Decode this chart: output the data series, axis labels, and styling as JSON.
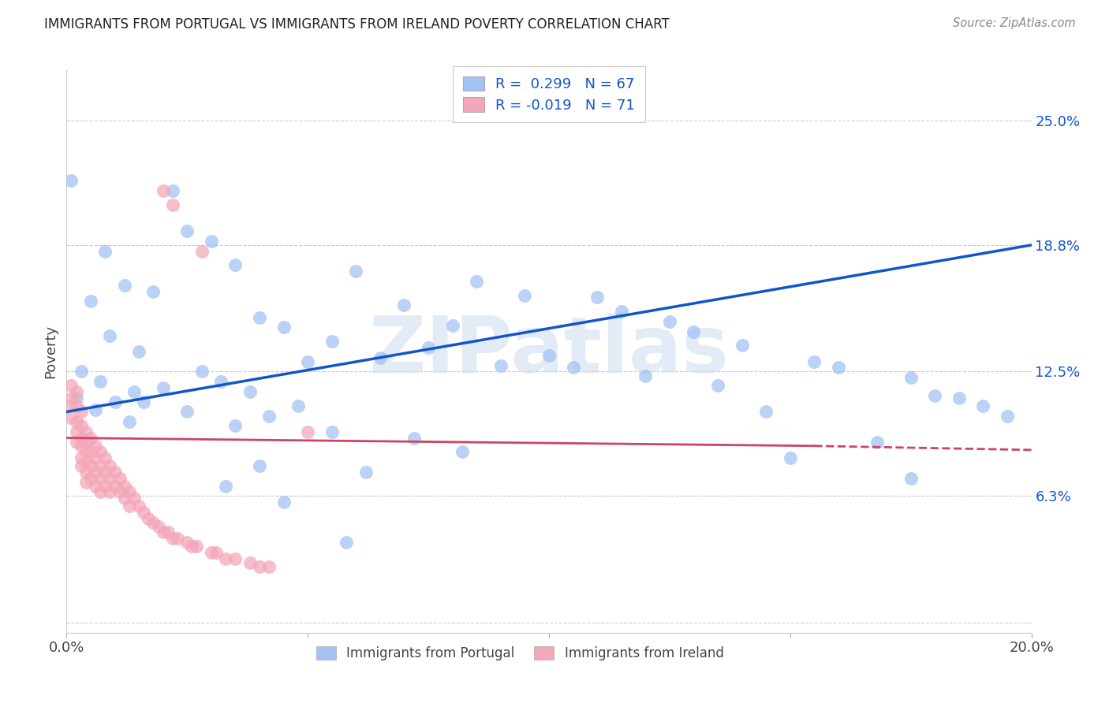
{
  "title": "IMMIGRANTS FROM PORTUGAL VS IMMIGRANTS FROM IRELAND POVERTY CORRELATION CHART",
  "source": "Source: ZipAtlas.com",
  "ylabel": "Poverty",
  "xlim": [
    0.0,
    0.2
  ],
  "ylim": [
    -0.005,
    0.275
  ],
  "yticks": [
    0.0,
    0.063,
    0.125,
    0.188,
    0.25
  ],
  "ytick_labels": [
    "",
    "6.3%",
    "12.5%",
    "18.8%",
    "25.0%"
  ],
  "xticks": [
    0.0,
    0.05,
    0.1,
    0.15,
    0.2
  ],
  "xtick_labels": [
    "0.0%",
    "",
    "",
    "",
    "20.0%"
  ],
  "blue_color": "#a4c2f4",
  "pink_color": "#f4a7b9",
  "blue_line_color": "#1155cc",
  "pink_line_color": "#cc4466",
  "bg_color": "#ffffff",
  "watermark": "ZIPatlas",
  "watermark_color": "#d0dff0",
  "blue_series_label": "Immigrants from Portugal",
  "pink_series_label": "Immigrants from Ireland",
  "blue_R": 0.299,
  "blue_N": 67,
  "pink_R": -0.019,
  "pink_N": 71,
  "blue_points": [
    [
      0.001,
      0.22
    ],
    [
      0.022,
      0.215
    ],
    [
      0.025,
      0.195
    ],
    [
      0.03,
      0.19
    ],
    [
      0.008,
      0.185
    ],
    [
      0.035,
      0.178
    ],
    [
      0.06,
      0.175
    ],
    [
      0.085,
      0.17
    ],
    [
      0.012,
      0.168
    ],
    [
      0.018,
      0.165
    ],
    [
      0.095,
      0.163
    ],
    [
      0.11,
      0.162
    ],
    [
      0.005,
      0.16
    ],
    [
      0.07,
      0.158
    ],
    [
      0.115,
      0.155
    ],
    [
      0.04,
      0.152
    ],
    [
      0.125,
      0.15
    ],
    [
      0.08,
      0.148
    ],
    [
      0.045,
      0.147
    ],
    [
      0.13,
      0.145
    ],
    [
      0.009,
      0.143
    ],
    [
      0.055,
      0.14
    ],
    [
      0.14,
      0.138
    ],
    [
      0.075,
      0.137
    ],
    [
      0.015,
      0.135
    ],
    [
      0.1,
      0.133
    ],
    [
      0.065,
      0.132
    ],
    [
      0.05,
      0.13
    ],
    [
      0.155,
      0.13
    ],
    [
      0.09,
      0.128
    ],
    [
      0.105,
      0.127
    ],
    [
      0.16,
      0.127
    ],
    [
      0.003,
      0.125
    ],
    [
      0.028,
      0.125
    ],
    [
      0.12,
      0.123
    ],
    [
      0.175,
      0.122
    ],
    [
      0.007,
      0.12
    ],
    [
      0.032,
      0.12
    ],
    [
      0.135,
      0.118
    ],
    [
      0.02,
      0.117
    ],
    [
      0.014,
      0.115
    ],
    [
      0.038,
      0.115
    ],
    [
      0.18,
      0.113
    ],
    [
      0.185,
      0.112
    ],
    [
      0.002,
      0.112
    ],
    [
      0.01,
      0.11
    ],
    [
      0.016,
      0.11
    ],
    [
      0.048,
      0.108
    ],
    [
      0.19,
      0.108
    ],
    [
      0.006,
      0.106
    ],
    [
      0.025,
      0.105
    ],
    [
      0.145,
      0.105
    ],
    [
      0.042,
      0.103
    ],
    [
      0.195,
      0.103
    ],
    [
      0.013,
      0.1
    ],
    [
      0.035,
      0.098
    ],
    [
      0.055,
      0.095
    ],
    [
      0.072,
      0.092
    ],
    [
      0.168,
      0.09
    ],
    [
      0.082,
      0.085
    ],
    [
      0.15,
      0.082
    ],
    [
      0.04,
      0.078
    ],
    [
      0.062,
      0.075
    ],
    [
      0.175,
      0.072
    ],
    [
      0.033,
      0.068
    ],
    [
      0.045,
      0.06
    ],
    [
      0.058,
      0.04
    ]
  ],
  "pink_points": [
    [
      0.001,
      0.118
    ],
    [
      0.001,
      0.112
    ],
    [
      0.001,
      0.108
    ],
    [
      0.001,
      0.102
    ],
    [
      0.002,
      0.115
    ],
    [
      0.002,
      0.108
    ],
    [
      0.002,
      0.1
    ],
    [
      0.002,
      0.095
    ],
    [
      0.002,
      0.09
    ],
    [
      0.003,
      0.105
    ],
    [
      0.003,
      0.098
    ],
    [
      0.003,
      0.092
    ],
    [
      0.003,
      0.088
    ],
    [
      0.003,
      0.082
    ],
    [
      0.003,
      0.078
    ],
    [
      0.004,
      0.095
    ],
    [
      0.004,
      0.09
    ],
    [
      0.004,
      0.085
    ],
    [
      0.004,
      0.08
    ],
    [
      0.004,
      0.075
    ],
    [
      0.004,
      0.07
    ],
    [
      0.005,
      0.092
    ],
    [
      0.005,
      0.085
    ],
    [
      0.005,
      0.078
    ],
    [
      0.005,
      0.072
    ],
    [
      0.006,
      0.088
    ],
    [
      0.006,
      0.082
    ],
    [
      0.006,
      0.075
    ],
    [
      0.006,
      0.068
    ],
    [
      0.007,
      0.085
    ],
    [
      0.007,
      0.078
    ],
    [
      0.007,
      0.072
    ],
    [
      0.007,
      0.065
    ],
    [
      0.008,
      0.082
    ],
    [
      0.008,
      0.075
    ],
    [
      0.008,
      0.068
    ],
    [
      0.009,
      0.078
    ],
    [
      0.009,
      0.072
    ],
    [
      0.009,
      0.065
    ],
    [
      0.01,
      0.075
    ],
    [
      0.01,
      0.068
    ],
    [
      0.011,
      0.072
    ],
    [
      0.011,
      0.065
    ],
    [
      0.012,
      0.068
    ],
    [
      0.012,
      0.062
    ],
    [
      0.013,
      0.065
    ],
    [
      0.013,
      0.058
    ],
    [
      0.014,
      0.062
    ],
    [
      0.015,
      0.058
    ],
    [
      0.016,
      0.055
    ],
    [
      0.017,
      0.052
    ],
    [
      0.018,
      0.05
    ],
    [
      0.019,
      0.048
    ],
    [
      0.02,
      0.045
    ],
    [
      0.021,
      0.045
    ],
    [
      0.022,
      0.042
    ],
    [
      0.023,
      0.042
    ],
    [
      0.025,
      0.04
    ],
    [
      0.026,
      0.038
    ],
    [
      0.027,
      0.038
    ],
    [
      0.03,
      0.035
    ],
    [
      0.031,
      0.035
    ],
    [
      0.033,
      0.032
    ],
    [
      0.035,
      0.032
    ],
    [
      0.038,
      0.03
    ],
    [
      0.04,
      0.028
    ],
    [
      0.042,
      0.028
    ],
    [
      0.02,
      0.215
    ],
    [
      0.022,
      0.208
    ],
    [
      0.028,
      0.185
    ],
    [
      0.05,
      0.095
    ]
  ]
}
